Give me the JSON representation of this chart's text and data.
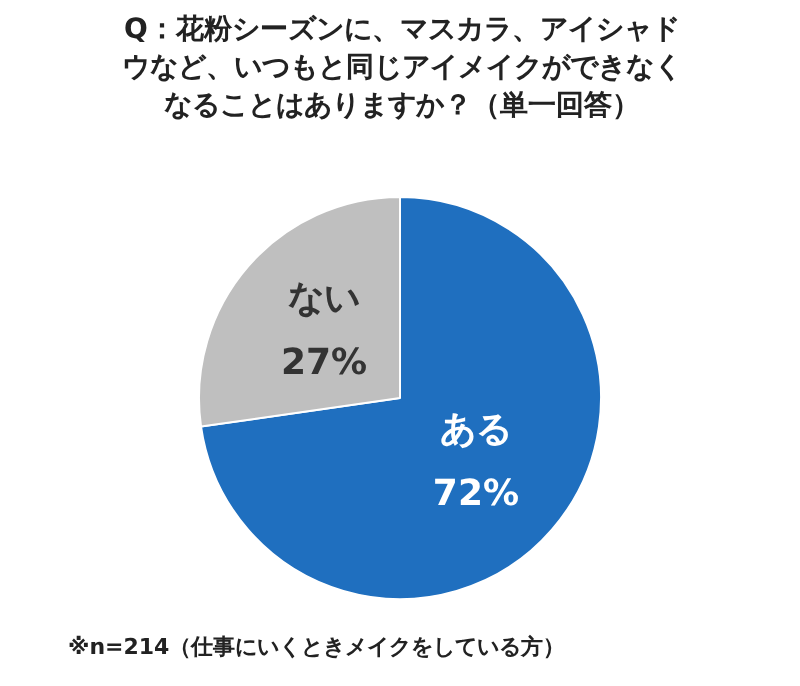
{
  "chart_data": {
    "type": "pie",
    "title": "Q：花粉シーズンに、マスカラ、アイシャドウなど、いつもと同じアイメイクができなくなることはありますか？（単一回答）",
    "categories": [
      "ある",
      "ない"
    ],
    "values": [
      72,
      27
    ],
    "value_labels": [
      "72%",
      "27%"
    ],
    "colors": [
      "#1f6fbf",
      "#bfbfbf"
    ],
    "legend": false,
    "annotations": [
      "※n=214（仕事にいくときメイクをしている方）"
    ]
  }
}
